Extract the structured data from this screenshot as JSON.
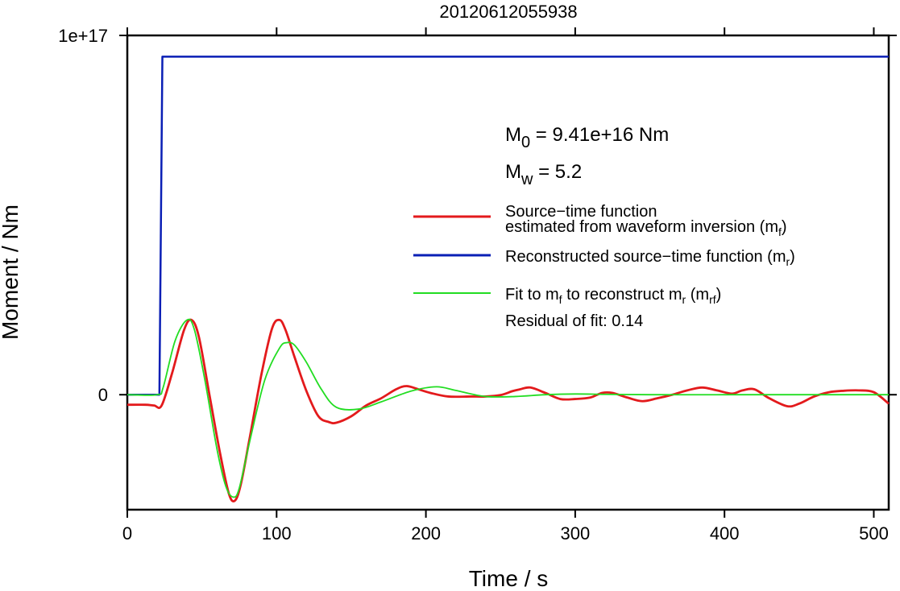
{
  "chart_data": {
    "type": "line",
    "title": "20120612055938",
    "xlabel": "Time / s",
    "ylabel": "Moment / Nm",
    "xlim": [
      0,
      510
    ],
    "ylim": [
      -3.2e+16,
      1e+17
    ],
    "xticks": [
      0,
      100,
      200,
      300,
      400,
      500
    ],
    "xtick_labels": [
      "0",
      "100",
      "200",
      "300",
      "400",
      "500"
    ],
    "yticks": [
      0,
      1e+17
    ],
    "ytick_labels": [
      "0",
      "1e+17"
    ],
    "grid": false,
    "legend_position": "right",
    "annotations": {
      "m0": {
        "main": "M",
        "sub": "0",
        "rest": " = 9.41e+16 Nm"
      },
      "mw": {
        "main": "M",
        "sub": "w",
        "rest": " = 5.2"
      },
      "residual": "Residual of fit: 0.14"
    },
    "legend": [
      {
        "lines": [
          "Source−time function",
          "estimated from waveform inversion (m",
          "f",
          ")"
        ],
        "color": "#e31a1c"
      },
      {
        "lines": [
          "Reconstructed source−time function (m",
          "r",
          ")"
        ],
        "color": "#0a1fb5"
      },
      {
        "lines": [
          "Fit to m",
          "f",
          " to reconstruct m",
          "r",
          " (m",
          "rf",
          ")"
        ],
        "color": "#22dd22"
      }
    ],
    "series": [
      {
        "name": "Reconstructed source−time function (mr)",
        "color": "#0a1fb5",
        "x": [
          0,
          21.5,
          23.5,
          510
        ],
        "y": [
          0,
          0,
          9.41e+16,
          9.41e+16
        ]
      },
      {
        "name": "Source−time function estimated from waveform inversion (mf)",
        "color": "#e31a1c",
        "x": [
          0,
          12,
          18,
          23,
          30,
          38,
          43,
          48,
          55,
          62,
          68,
          72,
          76,
          82,
          90,
          97,
          102,
          106,
          112,
          120,
          128,
          135,
          140,
          150,
          160,
          170,
          180,
          187,
          195,
          203,
          215,
          230,
          240,
          250,
          258,
          263,
          270,
          280,
          290,
          300,
          310,
          318,
          325,
          335,
          345,
          355,
          365,
          375,
          385,
          395,
          405,
          412,
          420,
          430,
          442,
          450,
          460,
          470,
          480,
          490,
          500,
          510
        ],
        "y": [
          -2800000000000000.0,
          -2800000000000000.0,
          -3000000000000000.0,
          -3000000000000000.0,
          6000000000000000.0,
          1.8e+16,
          2.08e+16,
          1.6e+16,
          0,
          -1.6e+16,
          -2.75e+16,
          -2.95e+16,
          -2.5e+16,
          -1.2e+16,
          6000000000000000.0,
          1.85e+16,
          2.08e+16,
          1.8e+16,
          1.05e+16,
          1000000000000000.0,
          -6000000000000000.0,
          -7600000000000000.0,
          -7800000000000000.0,
          -6000000000000000.0,
          -3000000000000000.0,
          -1000000000000000.0,
          1500000000000000.0,
          2400000000000000.0,
          1500000000000000.0,
          500000000000000.0,
          -500000000000000.0,
          -500000000000000.0,
          -500000000000000.0,
          -100000000000000.0,
          1000000000000000.0,
          1500000000000000.0,
          2000000000000000.0,
          500000000000000.0,
          -1200000000000000.0,
          -1200000000000000.0,
          -800000000000000.0,
          500000000000000.0,
          500000000000000.0,
          -800000000000000.0,
          -1800000000000000.0,
          -1000000000000000.0,
          0,
          1200000000000000.0,
          2000000000000000.0,
          1200000000000000.0,
          300000000000000.0,
          1200000000000000.0,
          1500000000000000.0,
          -1000000000000000.0,
          -3200000000000000.0,
          -2500000000000000.0,
          -500000000000000.0,
          700000000000000.0,
          1100000000000000.0,
          1200000000000000.0,
          700000000000000.0,
          -2500000000000000.0
        ]
      },
      {
        "name": "Fit to mf to reconstruct mr (mrf)",
        "color": "#22dd22",
        "x": [
          0,
          20,
          24,
          32,
          40,
          45,
          52,
          60,
          66,
          71,
          75,
          82,
          92,
          102,
          107,
          112,
          120,
          130,
          140,
          155,
          170,
          190,
          207,
          220,
          240,
          260,
          280,
          300,
          320,
          350,
          400,
          450,
          510
        ],
        "y": [
          0,
          0,
          2000000000000000.0,
          1.5e+16,
          2.08e+16,
          1.8e+16,
          4000000000000000.0,
          -1.5e+16,
          -2.55e+16,
          -2.85e+16,
          -2.6e+16,
          -1.3e+16,
          4000000000000000.0,
          1.3e+16,
          1.45e+16,
          1.38e+16,
          9000000000000000.0,
          1500000000000000.0,
          -3500000000000000.0,
          -4000000000000000.0,
          -2000000000000000.0,
          1000000000000000.0,
          2200000000000000.0,
          1200000000000000.0,
          -500000000000000.0,
          -500000000000000.0,
          0,
          200000000000000.0,
          100000000000000.0,
          0,
          0,
          0,
          0
        ]
      }
    ]
  }
}
